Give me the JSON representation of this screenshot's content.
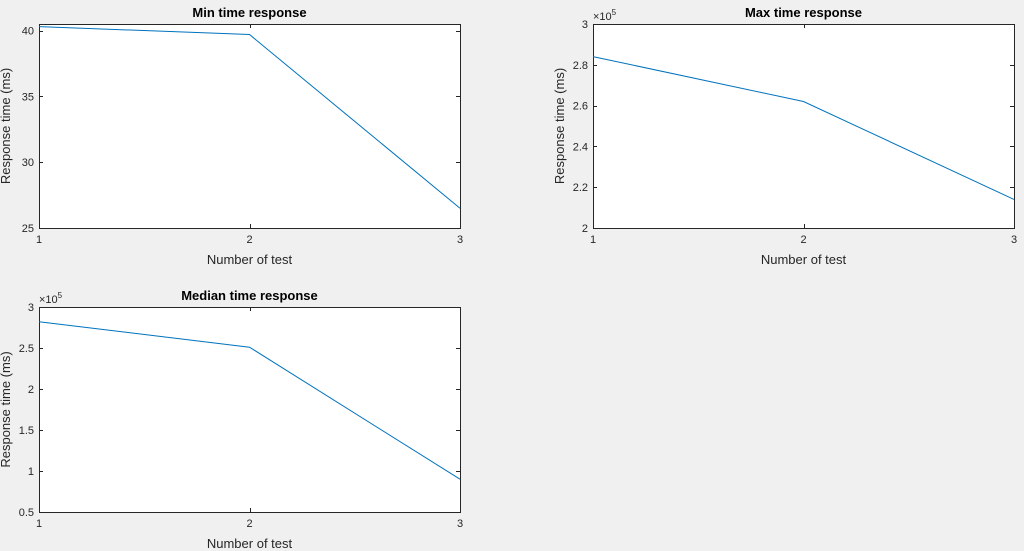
{
  "chart_data": [
    {
      "type": "line",
      "title": "Min time response",
      "xlabel": "Number of test",
      "ylabel": "Response time (ms)",
      "x": [
        1,
        2,
        3
      ],
      "xlim": [
        1,
        3
      ],
      "xticks": [
        1,
        2,
        3
      ],
      "ylim": [
        25,
        40.5
      ],
      "yticks": [
        25,
        30,
        35,
        40
      ],
      "exponent": "",
      "series": [
        {
          "name": "min",
          "values": [
            40.3,
            39.7,
            26.5
          ],
          "color": "#0072bd"
        }
      ],
      "grid": false
    },
    {
      "type": "line",
      "title": "Max time response",
      "xlabel": "Number of test",
      "ylabel": "Response time (ms)",
      "x": [
        1,
        2,
        3
      ],
      "xlim": [
        1,
        3
      ],
      "xticks": [
        1,
        2,
        3
      ],
      "ylim": [
        2,
        3
      ],
      "yticks": [
        2,
        2.2,
        2.4,
        2.6,
        2.8,
        3
      ],
      "exponent": "5",
      "series": [
        {
          "name": "max",
          "values": [
            2.84,
            2.62,
            2.14
          ],
          "color": "#0072bd"
        }
      ],
      "grid": false
    },
    {
      "type": "line",
      "title": "Median time response",
      "xlabel": "Number of test",
      "ylabel": "Response time (ms)",
      "x": [
        1,
        2,
        3
      ],
      "xlim": [
        1,
        3
      ],
      "xticks": [
        1,
        2,
        3
      ],
      "ylim": [
        0.5,
        3
      ],
      "yticks": [
        0.5,
        1,
        1.5,
        2,
        2.5,
        3
      ],
      "exponent": "5",
      "series": [
        {
          "name": "median",
          "values": [
            2.82,
            2.51,
            0.9
          ],
          "color": "#0072bd"
        }
      ],
      "grid": false
    }
  ]
}
